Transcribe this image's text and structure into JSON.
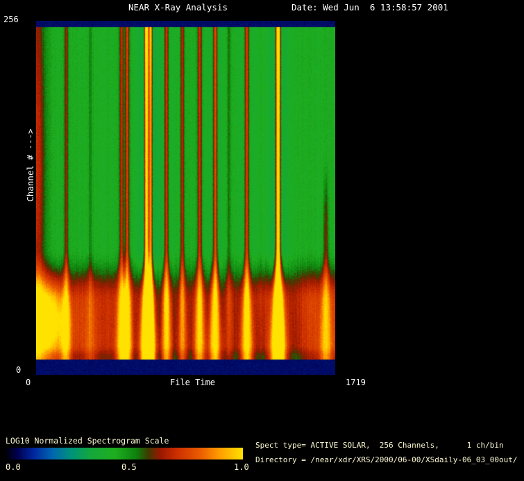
{
  "window": {
    "background_color": "#000000",
    "text_color": "#ffffff",
    "secondary_text_color": "#fbf8d2"
  },
  "header": {
    "title": "NEAR X-Ray Analysis",
    "date_label": "Date: Wed Jun  6 13:58:57 2001"
  },
  "plot": {
    "y_axis_top_label": "256",
    "y_axis_bottom_label": "0",
    "y_axis_title": "Channel # --->",
    "x_axis_left_label": "0",
    "x_axis_title": "File Time",
    "x_axis_right_label": "1719"
  },
  "colorbar": {
    "label": "LOG10 Normalized Spectrogram Scale",
    "tick_labels": [
      "0.0",
      "0.5",
      "1.0"
    ]
  },
  "info": {
    "line1": "Spect type= ACTIVE SOLAR,  256 Channels,      1 ch/bin",
    "line2": "Directory = /near/xdr/XRS/2000/06-00/XSdaily-06_03_00out/"
  },
  "chart_data": {
    "type": "heatmap",
    "title": "NEAR X-Ray Analysis",
    "xlabel": "File Time",
    "ylabel": "Channel #",
    "x_range": [
      0,
      1719
    ],
    "y_range": [
      0,
      256
    ],
    "scale": {
      "label": "LOG10 Normalized Spectrogram Scale",
      "min": 0.0,
      "max": 1.0
    },
    "colormap_stops": [
      {
        "v": 0.0,
        "c": "#000006"
      },
      {
        "v": 0.05,
        "c": "#000050"
      },
      {
        "v": 0.12,
        "c": "#0028a0"
      },
      {
        "v": 0.2,
        "c": "#0068b0"
      },
      {
        "v": 0.28,
        "c": "#009478"
      },
      {
        "v": 0.36,
        "c": "#14a83c"
      },
      {
        "v": 0.46,
        "c": "#1fae1f"
      },
      {
        "v": 0.55,
        "c": "#0e820e"
      },
      {
        "v": 0.6,
        "c": "#3c3c00"
      },
      {
        "v": 0.65,
        "c": "#981800"
      },
      {
        "v": 0.72,
        "c": "#cc2e00"
      },
      {
        "v": 0.82,
        "c": "#ea5c00"
      },
      {
        "v": 0.9,
        "c": "#ff9c00"
      },
      {
        "v": 1.0,
        "c": "#ffe200"
      }
    ],
    "background_level": 0.455,
    "noise_amplitude": 0.055,
    "column_noise": 0.035,
    "border_top_frac": 0.016,
    "border_bottom_frac": 0.043,
    "border_level": 0.07,
    "bottom_band": {
      "start": 0.64,
      "full": 0.8,
      "amplitude": 0.26,
      "modulation": [
        {
          "x": 0.02,
          "amp": 0.1,
          "sigma": 0.1
        },
        {
          "x": 0.37,
          "amp": 0.06,
          "sigma": 0.05
        },
        {
          "x": 0.81,
          "amp": 0.1,
          "sigma": 0.05
        },
        {
          "x": 0.49,
          "amp": -0.08,
          "sigma": 0.025
        },
        {
          "x": 0.115,
          "amp": -0.07,
          "sigma": 0.018
        },
        {
          "x": 0.62,
          "amp": -0.04,
          "sigma": 0.03
        },
        {
          "x": 0.865,
          "amp": -0.06,
          "sigma": 0.02
        },
        {
          "x": 0.96,
          "amp": 0.05,
          "sigma": 0.06
        }
      ]
    },
    "left_edge": {
      "amp": 0.26,
      "sigma": 0.022
    },
    "left_hot_spot": {
      "x": 0.03,
      "y": 0.85,
      "sigma_x": 0.05,
      "sigma_y": 0.06,
      "amp": 0.32
    },
    "streaks": [
      {
        "x": 0.1,
        "amp": 0.22,
        "sigma": 2.0
      },
      {
        "x": 0.181,
        "amp": 0.08,
        "sigma": 2.0
      },
      {
        "x": 0.285,
        "amp": 0.26,
        "sigma": 2.2
      },
      {
        "x": 0.304,
        "amp": 0.3,
        "sigma": 2.2
      },
      {
        "x": 0.369,
        "amp": 0.42,
        "sigma": 2.6,
        "core": 0.38,
        "dip": 0.1
      },
      {
        "x": 0.383,
        "amp": 0.34,
        "sigma": 2.2,
        "core": 0.2,
        "dip": 0.06
      },
      {
        "x": 0.436,
        "amp": 0.28,
        "sigma": 2.2,
        "dip": 0.05
      },
      {
        "x": 0.489,
        "amp": 0.24,
        "sigma": 2.0
      },
      {
        "x": 0.547,
        "amp": 0.28,
        "sigma": 2.2
      },
      {
        "x": 0.599,
        "amp": 0.32,
        "sigma": 2.4,
        "dip": 0.06
      },
      {
        "x": 0.645,
        "amp": 0.1,
        "sigma": 2.0
      },
      {
        "x": 0.705,
        "amp": 0.3,
        "sigma": 2.4,
        "dip": 0.05
      },
      {
        "x": 0.81,
        "amp": 0.46,
        "sigma": 2.8,
        "core": 0.42,
        "dip": 0.1
      },
      {
        "x": 0.97,
        "amp": 0.18,
        "sigma": 2.4,
        "lower_only": true
      }
    ]
  }
}
